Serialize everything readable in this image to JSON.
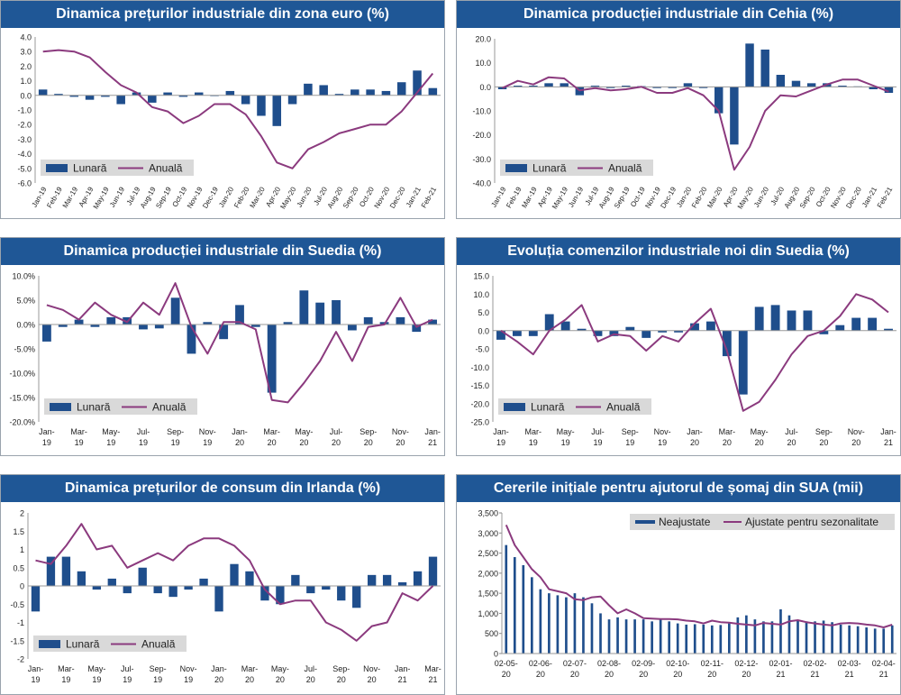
{
  "colors": {
    "title_bg": "#1f5796",
    "bar": "#1f4e8c",
    "line": "#8b3a7e",
    "legend_bg": "#d9d9d9"
  },
  "chart_data": [
    {
      "id": "c1",
      "type": "bar+line",
      "title": "Dinamica prețurilor industriale din zona euro (%)",
      "ylim": [
        -6,
        4
      ],
      "yticks": [
        -6,
        -5,
        -4,
        -3,
        -2,
        -1,
        0,
        1,
        2,
        3,
        4
      ],
      "ydecimals": 1,
      "ysuffix": "",
      "categories": [
        "Jan-19",
        "Feb-19",
        "Mar-19",
        "Apr-19",
        "May-19",
        "Jun-19",
        "Jul-19",
        "Aug-19",
        "Sep-19",
        "Oct-19",
        "Nov-19",
        "Dec-19",
        "Jan-20",
        "Feb-20",
        "Mar-20",
        "Apr-20",
        "May-20",
        "Jun-20",
        "Jul-20",
        "Aug-20",
        "Sep-20",
        "Oct-20",
        "Nov-20",
        "Dec-20",
        "Jan-21",
        "Feb-21"
      ],
      "labels_rotated": true,
      "series": [
        {
          "name": "Lunară",
          "kind": "bar",
          "values": [
            0.4,
            0.1,
            -0.1,
            -0.3,
            -0.1,
            -0.6,
            0.2,
            -0.5,
            0.2,
            -0.1,
            0.2,
            0.0,
            0.3,
            -0.6,
            -1.4,
            -2.1,
            -0.6,
            0.8,
            0.7,
            0.1,
            0.4,
            0.4,
            0.3,
            0.9,
            1.7,
            0.5
          ]
        },
        {
          "name": "Anuală",
          "kind": "line",
          "values": [
            3.0,
            3.1,
            3.0,
            2.6,
            1.6,
            0.7,
            0.2,
            -0.8,
            -1.1,
            -1.9,
            -1.4,
            -0.6,
            -0.6,
            -1.3,
            -2.8,
            -4.6,
            -5.0,
            -3.7,
            -3.2,
            -2.6,
            -2.3,
            -2.0,
            -2.0,
            -1.1,
            0.2,
            1.5
          ]
        }
      ],
      "legend": [
        "Lunară",
        "Anuală"
      ],
      "legend_pos": "bottom-left"
    },
    {
      "id": "c2",
      "type": "bar+line",
      "title": "Dinamica producției industriale din Cehia (%)",
      "ylim": [
        -40,
        20
      ],
      "yticks": [
        -40,
        -30,
        -20,
        -10,
        0,
        10,
        20
      ],
      "ydecimals": 1,
      "ysuffix": "",
      "categories": [
        "Jan-19",
        "Feb-19",
        "Mar-19",
        "Apr-19",
        "May-19",
        "Jun-19",
        "Jul-19",
        "Aug-19",
        "Sep-19",
        "Oct-19",
        "Nov-19",
        "Dec-19",
        "Jan-20",
        "Feb-20",
        "Mar-20",
        "Apr-20",
        "May-20",
        "Jun-20",
        "Jul-20",
        "Aug-20",
        "Sep-20",
        "Oct-20",
        "Nov-20",
        "Dec-20",
        "Jan-21",
        "Feb-21"
      ],
      "labels_rotated": true,
      "series": [
        {
          "name": "Lunară",
          "kind": "bar",
          "values": [
            -1.0,
            0.5,
            0.5,
            1.5,
            1.5,
            -3.5,
            0.5,
            -0.5,
            0.5,
            0.3,
            -0.5,
            -0.5,
            1.5,
            -0.5,
            -11.0,
            -24.0,
            18.0,
            15.5,
            5.0,
            2.5,
            1.5,
            1.5,
            0.5,
            0.2,
            -1.0,
            -2.5
          ]
        },
        {
          "name": "Anuală",
          "kind": "line",
          "values": [
            -0.5,
            2.5,
            1.0,
            4.0,
            3.5,
            -1.5,
            -0.5,
            -1.5,
            -1.0,
            0.0,
            -2.5,
            -2.5,
            -0.5,
            -3.5,
            -10.0,
            -34.5,
            -25.0,
            -10.0,
            -3.5,
            -4.0,
            -1.5,
            1.0,
            3.0,
            3.0,
            0.5,
            -2.0
          ]
        }
      ],
      "legend": [
        "Lunară",
        "Anuală"
      ],
      "legend_pos": "bottom-left"
    },
    {
      "id": "c3",
      "type": "bar+line",
      "title": "Dinamica producției industriale din Suedia (%)",
      "ylim": [
        -20,
        10
      ],
      "yticks": [
        -20,
        -15,
        -10,
        -5,
        0,
        5,
        10
      ],
      "ydecimals": 1,
      "ysuffix": "%",
      "categories": [
        "Jan-19",
        "Feb-19",
        "Mar-19",
        "Apr-19",
        "May-19",
        "Jun-19",
        "Jul-19",
        "Aug-19",
        "Sep-19",
        "Oct-19",
        "Nov-19",
        "Dec-19",
        "Jan-20",
        "Feb-20",
        "Mar-20",
        "Apr-20",
        "May-20",
        "Jun-20",
        "Jul-20",
        "Aug-20",
        "Sep-20",
        "Oct-20",
        "Nov-20",
        "Dec-20",
        "Jan-21"
      ],
      "labels_rotated": false,
      "xlabels": [
        [
          "Jan-",
          "19"
        ],
        [
          "",
          ""
        ],
        [
          "Mar-",
          "19"
        ],
        [
          "",
          ""
        ],
        [
          "May-",
          "19"
        ],
        [
          "",
          ""
        ],
        [
          "Jul-",
          "19"
        ],
        [
          "",
          ""
        ],
        [
          "Sep-",
          "19"
        ],
        [
          "",
          ""
        ],
        [
          "Nov-",
          "19"
        ],
        [
          "",
          ""
        ],
        [
          "Jan-",
          "20"
        ],
        [
          "",
          ""
        ],
        [
          "Mar-",
          "20"
        ],
        [
          "",
          ""
        ],
        [
          "May-",
          "20"
        ],
        [
          "",
          ""
        ],
        [
          "Jul-",
          "20"
        ],
        [
          "",
          ""
        ],
        [
          "Sep-",
          "20"
        ],
        [
          "",
          ""
        ],
        [
          "Nov-",
          "20"
        ],
        [
          "",
          ""
        ],
        [
          "Jan-",
          "21"
        ]
      ],
      "series": [
        {
          "name": "Lunară",
          "kind": "bar",
          "values": [
            -3.5,
            -0.5,
            1.0,
            -0.5,
            1.5,
            1.5,
            -1.0,
            -0.8,
            5.5,
            -6.0,
            0.5,
            -3.0,
            4.0,
            -0.5,
            -14.0,
            0.5,
            7.0,
            4.5,
            5.0,
            -1.2,
            1.5,
            0.5,
            1.5,
            -1.5,
            1.0
          ]
        },
        {
          "name": "Anuală",
          "kind": "line",
          "values": [
            4.0,
            3.0,
            1.0,
            4.5,
            2.0,
            0.5,
            4.5,
            2.0,
            8.5,
            -0.5,
            -6.0,
            0.5,
            0.5,
            -1.0,
            -15.5,
            -16.0,
            -12.0,
            -7.5,
            -1.5,
            -7.5,
            -0.5,
            0.0,
            5.5,
            -0.5,
            1.0
          ]
        }
      ],
      "legend": [
        "Lunară",
        "Anuală"
      ],
      "legend_pos": "bottom-left"
    },
    {
      "id": "c4",
      "type": "bar+line",
      "title": "Evoluția comenzilor industriale noi din Suedia (%)",
      "ylim": [
        -25,
        15
      ],
      "yticks": [
        -25,
        -20,
        -15,
        -10,
        -5,
        0,
        5,
        10,
        15
      ],
      "ydecimals": 1,
      "ysuffix": "",
      "categories": [
        "Jan-19",
        "Feb-19",
        "Mar-19",
        "Apr-19",
        "May-19",
        "Jun-19",
        "Jul-19",
        "Aug-19",
        "Sep-19",
        "Oct-19",
        "Nov-19",
        "Dec-19",
        "Jan-20",
        "Feb-20",
        "Mar-20",
        "Apr-20",
        "May-20",
        "Jun-20",
        "Jul-20",
        "Aug-20",
        "Sep-20",
        "Oct-20",
        "Nov-20",
        "Dec-20",
        "Jan-21"
      ],
      "labels_rotated": false,
      "xlabels": [
        [
          "Jan-",
          "19"
        ],
        [
          "",
          ""
        ],
        [
          "Mar-",
          "19"
        ],
        [
          "",
          ""
        ],
        [
          "May-",
          "19"
        ],
        [
          "",
          ""
        ],
        [
          "Jul-",
          "19"
        ],
        [
          "",
          ""
        ],
        [
          "Sep-",
          "19"
        ],
        [
          "",
          ""
        ],
        [
          "Nov-",
          "19"
        ],
        [
          "",
          ""
        ],
        [
          "Jan-",
          "20"
        ],
        [
          "",
          ""
        ],
        [
          "Mar-",
          "20"
        ],
        [
          "",
          ""
        ],
        [
          "May-",
          "20"
        ],
        [
          "",
          ""
        ],
        [
          "Jul-",
          "20"
        ],
        [
          "",
          ""
        ],
        [
          "Sep-",
          "20"
        ],
        [
          "",
          ""
        ],
        [
          "Nov-",
          "20"
        ],
        [
          "",
          ""
        ],
        [
          "Jan-",
          "21"
        ]
      ],
      "series": [
        {
          "name": "Lunară",
          "kind": "bar",
          "values": [
            -2.5,
            -1.5,
            -1.5,
            4.5,
            2.5,
            0.5,
            -1.5,
            -1.5,
            1.0,
            -2.0,
            -0.5,
            -0.5,
            2.0,
            2.5,
            -7.0,
            -17.5,
            6.5,
            7.0,
            5.5,
            5.5,
            -1.0,
            1.5,
            3.5,
            3.5,
            0.5
          ]
        },
        {
          "name": "Anuală",
          "kind": "line",
          "values": [
            0.0,
            -3.0,
            -6.5,
            0.0,
            3.0,
            7.0,
            -3.0,
            -1.0,
            -1.5,
            -5.5,
            -1.5,
            -3.0,
            2.0,
            6.0,
            -5.5,
            -22.0,
            -19.5,
            -13.5,
            -6.5,
            -1.5,
            0.0,
            4.0,
            10.0,
            8.5,
            5.0
          ]
        }
      ],
      "legend": [
        "Lunară",
        "Anuală"
      ],
      "legend_pos": "bottom-left"
    },
    {
      "id": "c5",
      "type": "bar+line",
      "title": "Dinamica prețurilor de consum din Irlanda (%)",
      "ylim": [
        -2,
        2
      ],
      "yticks": [
        -2,
        -1.5,
        -1,
        -0.5,
        0,
        0.5,
        1,
        1.5,
        2
      ],
      "ydecimals": -1,
      "ysuffix": "",
      "categories": [
        "Jan-19",
        "Feb-19",
        "Mar-19",
        "Apr-19",
        "May-19",
        "Jun-19",
        "Jul-19",
        "Aug-19",
        "Sep-19",
        "Oct-19",
        "Nov-19",
        "Dec-19",
        "Jan-20",
        "Feb-20",
        "Mar-20",
        "Apr-20",
        "May-20",
        "Jun-20",
        "Jul-20",
        "Aug-20",
        "Sep-20",
        "Oct-20",
        "Nov-20",
        "Dec-20",
        "Jan-21",
        "Feb-21",
        "Mar-21"
      ],
      "labels_rotated": false,
      "xlabels": [
        [
          "Jan-",
          "19"
        ],
        [
          "",
          ""
        ],
        [
          "Mar-",
          "19"
        ],
        [
          "",
          ""
        ],
        [
          "May-",
          "19"
        ],
        [
          "",
          ""
        ],
        [
          "Jul-",
          "19"
        ],
        [
          "",
          ""
        ],
        [
          "Sep-",
          "19"
        ],
        [
          "",
          ""
        ],
        [
          "Nov-",
          "19"
        ],
        [
          "",
          ""
        ],
        [
          "Jan-",
          "20"
        ],
        [
          "",
          ""
        ],
        [
          "Mar-",
          "20"
        ],
        [
          "",
          ""
        ],
        [
          "May-",
          "20"
        ],
        [
          "",
          ""
        ],
        [
          "Jul-",
          "20"
        ],
        [
          "",
          ""
        ],
        [
          "Sep-",
          "20"
        ],
        [
          "",
          ""
        ],
        [
          "Nov-",
          "20"
        ],
        [
          "",
          ""
        ],
        [
          "Jan-",
          "21"
        ],
        [
          "",
          ""
        ],
        [
          "Mar-",
          "21"
        ]
      ],
      "series": [
        {
          "name": "Lunară",
          "kind": "bar",
          "values": [
            -0.7,
            0.8,
            0.8,
            0.4,
            -0.1,
            0.2,
            -0.2,
            0.5,
            -0.2,
            -0.3,
            -0.1,
            0.2,
            -0.7,
            0.6,
            0.4,
            -0.4,
            -0.5,
            0.3,
            -0.2,
            -0.1,
            -0.4,
            -0.6,
            0.3,
            0.3,
            0.1,
            0.4,
            0.8
          ]
        },
        {
          "name": "Anuală",
          "kind": "line",
          "values": [
            0.7,
            0.6,
            1.1,
            1.7,
            1.0,
            1.1,
            0.5,
            0.7,
            0.9,
            0.7,
            1.1,
            1.3,
            1.3,
            1.1,
            0.7,
            -0.1,
            -0.5,
            -0.4,
            -0.4,
            -1.0,
            -1.2,
            -1.5,
            -1.1,
            -1.0,
            -0.2,
            -0.4,
            0.0
          ]
        }
      ],
      "legend": [
        "Lunară",
        "Anuală"
      ],
      "legend_pos": "bottom-left"
    },
    {
      "id": "c6",
      "type": "bar+line",
      "title": "Cererile inițiale pentru ajutorul de șomaj din SUA (mii)",
      "ylim": [
        0,
        3500
      ],
      "yticks": [
        0,
        500,
        1000,
        1500,
        2000,
        2500,
        3000,
        3500
      ],
      "ydecimals": 0,
      "ysuffix": "",
      "ythousands": true,
      "categories": [
        "02-05-20",
        "",
        "",
        "",
        "02-06-20",
        "",
        "",
        "",
        "02-07-20",
        "",
        "",
        "",
        "02-08-20",
        "",
        "",
        "",
        "02-09-20",
        "",
        "",
        "",
        "02-10-20",
        "",
        "",
        "",
        "02-11-20",
        "",
        "",
        "",
        "02-12-20",
        "",
        "",
        "",
        "02-01-21",
        "",
        "",
        "",
        "02-02-21",
        "",
        "",
        "",
        "02-03-21",
        "",
        "",
        "",
        "02-04-21",
        ""
      ],
      "labels_rotated": false,
      "xlabels_every": 4,
      "series": [
        {
          "name": "Neajustate",
          "kind": "bar",
          "values": [
            2700,
            2400,
            2200,
            1900,
            1600,
            1500,
            1450,
            1400,
            1500,
            1400,
            1250,
            1000,
            850,
            900,
            850,
            850,
            850,
            800,
            850,
            800,
            750,
            720,
            730,
            720,
            700,
            710,
            750,
            900,
            950,
            850,
            800,
            800,
            1100,
            950,
            830,
            800,
            800,
            820,
            780,
            720,
            700,
            680,
            650,
            620,
            620,
            700
          ]
        },
        {
          "name": "Ajustate pentru sezonalitate",
          "kind": "line",
          "values": [
            3200,
            2700,
            2400,
            2100,
            1900,
            1600,
            1550,
            1500,
            1350,
            1330,
            1400,
            1420,
            1200,
            1000,
            1100,
            1000,
            880,
            870,
            860,
            860,
            850,
            820,
            800,
            750,
            820,
            780,
            770,
            740,
            720,
            700,
            760,
            740,
            720,
            800,
            830,
            780,
            750,
            720,
            700,
            750,
            760,
            750,
            720,
            700,
            650,
            720
          ]
        }
      ],
      "legend": [
        "Neajustate",
        "Ajustate pentru sezonalitate"
      ],
      "legend_pos": "top-right"
    }
  ]
}
